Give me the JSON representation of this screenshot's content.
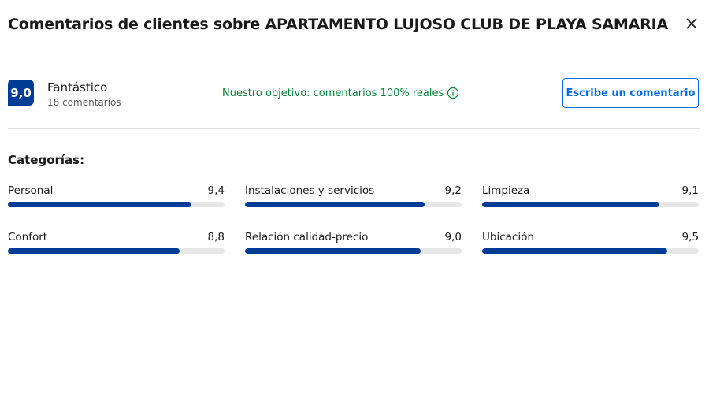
{
  "header": {
    "title": "Comentarios de clientes sobre APARTAMENTO LUJOSO CLUB DE PLAYA SAMARIA"
  },
  "summary": {
    "score": "9,0",
    "rating": "Fantástico",
    "count": "18 comentarios",
    "note": "Nuestro objetivo: comentarios 100% reales",
    "button": "Escribe un comentario"
  },
  "categories": {
    "title": "Categorías:",
    "items": [
      {
        "name": "Personal",
        "value": 9.4,
        "label": "9,4"
      },
      {
        "name": "Instalaciones y servicios",
        "value": 9.2,
        "label": "9,2"
      },
      {
        "name": "Limpieza",
        "value": 9.1,
        "label": "9,1"
      },
      {
        "name": "Confort",
        "value": 8.8,
        "label": "8,8"
      },
      {
        "name": "Relación calidad-precio",
        "value": 9.0,
        "label": "9,0"
      },
      {
        "name": "Ubicación",
        "value": 9.5,
        "label": "9,5"
      }
    ]
  }
}
